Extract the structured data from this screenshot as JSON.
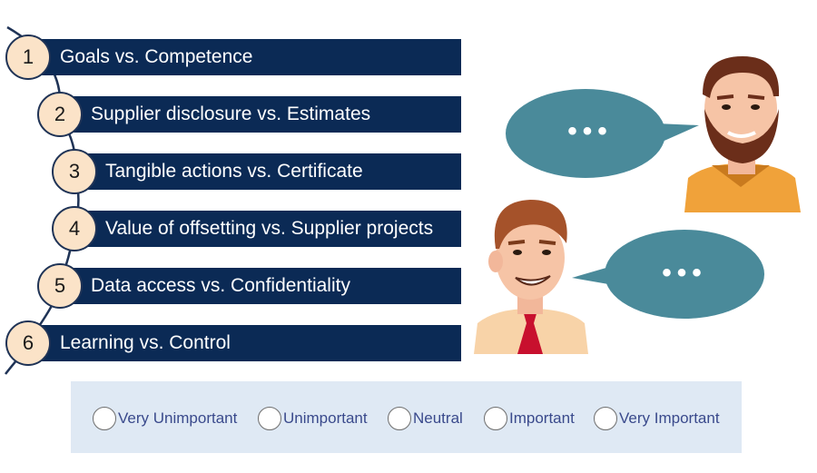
{
  "items": [
    {
      "number": "1",
      "label": "Goals vs. Competence"
    },
    {
      "number": "2",
      "label": "Supplier disclosure vs. Estimates"
    },
    {
      "number": "3",
      "label": "Tangible actions vs. Certificate"
    },
    {
      "number": "4",
      "label": "Value of offsetting vs. Supplier projects"
    },
    {
      "number": "5",
      "label": "Data access vs. Confidentiality"
    },
    {
      "number": "6",
      "label": "Learning vs. Control"
    }
  ],
  "bubbles": {
    "top_text": "•••",
    "bottom_text": "•••"
  },
  "rating": {
    "options": [
      "Very Unimportant",
      "Unimportant",
      "Neutral",
      "Important",
      "Very Important"
    ],
    "selected": null
  },
  "colors": {
    "bar": "#0b2a55",
    "circle_fill": "#fbe3c8",
    "bubble": "#4a8a9a",
    "rating_bg": "#dfe9f4",
    "rating_text": "#3a4a8c"
  }
}
